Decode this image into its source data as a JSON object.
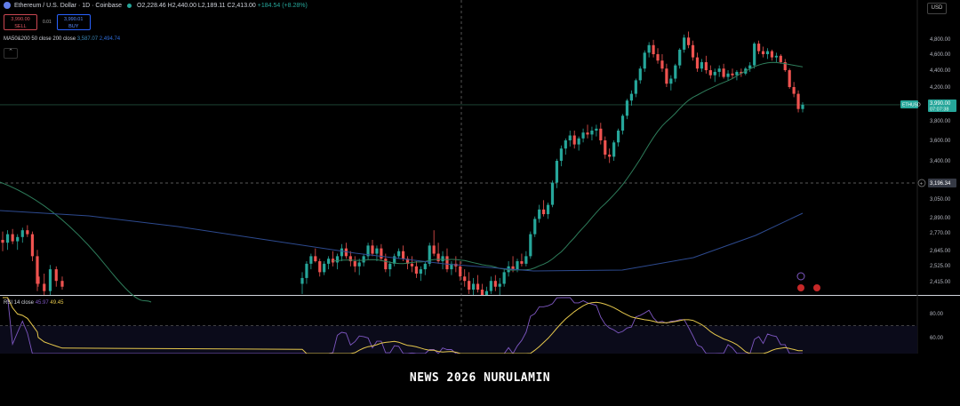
{
  "header": {
    "title": "Ethereum / U.S. Dollar · 1D · Coinbase",
    "ohlc": [
      {
        "k": "O",
        "v": "2,228.46"
      },
      {
        "k": "H",
        "v": "2,440.00"
      },
      {
        "k": "L",
        "v": "2,189.11"
      },
      {
        "k": "C",
        "v": "2,413.00"
      }
    ],
    "change": "+184.54 (+8.28%)"
  },
  "trade": {
    "sell_price": "3,990.00",
    "sell_label": "SELL",
    "spread": "0.01",
    "buy_price": "3,990.01",
    "buy_label": "BUY"
  },
  "indicators": {
    "ma_label": "MA50&200 50 close 200 close",
    "ma50_value": "3,587.07",
    "ma200_value": "2,494.74",
    "rsi_label": "RSI 14 close",
    "rsi_value": "45.97",
    "rsi_ma_value": "49.45"
  },
  "currency": "USD",
  "footer_text": "NEWS 2026 NURULAMIN",
  "colors": {
    "up": "#26a69a",
    "down": "#ef5350",
    "ma50": "#2e7d5b",
    "ma200": "#2d4a8f",
    "rsi": "#7e57c2",
    "rsi_ma": "#e6c84c",
    "price_label": "#26a69a"
  },
  "icons": [
    "ethereum-logo-icon",
    "market-open-dot-icon",
    "collapse-arrow-icon",
    "crosshair-plus-icon",
    "event-flag-icon"
  ],
  "chart_data": {
    "type": "candlestick",
    "symbol": "ETHUSD",
    "price_axis_ticks": [
      "4,800.00",
      "4,600.00",
      "4,400.00",
      "4,200.00",
      "3,800.00",
      "3,600.00",
      "3,400.00",
      "3,050.00",
      "2,890.00",
      "2,770.00",
      "2,645.00",
      "2,525.00",
      "2,415.00"
    ],
    "current_price": {
      "symbol": "ETHUSD",
      "price": "3,990.00",
      "countdown": "07:07:38"
    },
    "crosshair_price": "3,196.34",
    "rsi_axis_ticks": [
      "80.00",
      "60.00"
    ],
    "rsi_level_line": 70,
    "candles": [
      [
        2720,
        2780,
        2640,
        2700
      ],
      [
        2700,
        2790,
        2650,
        2760
      ],
      [
        2760,
        2800,
        2690,
        2710
      ],
      [
        2710,
        2760,
        2650,
        2740
      ],
      [
        2740,
        2810,
        2700,
        2790
      ],
      [
        2790,
        2830,
        2740,
        2760
      ],
      [
        2760,
        2780,
        2560,
        2600
      ],
      [
        2600,
        2650,
        2350,
        2400
      ],
      [
        2450,
        2480,
        2380,
        2400
      ],
      [
        2400,
        2470,
        2300,
        2350
      ],
      [
        2350,
        2530,
        2320,
        2500
      ],
      [
        2500,
        2520,
        2380,
        2420
      ],
      [
        2420,
        2450,
        2360,
        2380
      ],
      [
        2400,
        2480,
        2330,
        2440
      ],
      [
        2440,
        2560,
        2400,
        2540
      ],
      [
        2540,
        2620,
        2500,
        2600
      ],
      [
        2600,
        2660,
        2550,
        2560
      ],
      [
        2560,
        2580,
        2450,
        2480
      ],
      [
        2480,
        2560,
        2460,
        2540
      ],
      [
        2540,
        2600,
        2500,
        2580
      ],
      [
        2580,
        2640,
        2520,
        2550
      ],
      [
        2550,
        2620,
        2500,
        2600
      ],
      [
        2600,
        2690,
        2560,
        2660
      ],
      [
        2660,
        2700,
        2580,
        2600
      ],
      [
        2600,
        2640,
        2520,
        2560
      ],
      [
        2560,
        2600,
        2480,
        2520
      ],
      [
        2520,
        2580,
        2460,
        2550
      ],
      [
        2550,
        2620,
        2520,
        2600
      ],
      [
        2600,
        2700,
        2570,
        2680
      ],
      [
        2680,
        2720,
        2600,
        2620
      ],
      [
        2620,
        2680,
        2560,
        2660
      ],
      [
        2660,
        2690,
        2560,
        2580
      ],
      [
        2580,
        2620,
        2480,
        2500
      ],
      [
        2500,
        2560,
        2450,
        2540
      ],
      [
        2540,
        2620,
        2520,
        2600
      ],
      [
        2600,
        2660,
        2580,
        2640
      ],
      [
        2640,
        2680,
        2560,
        2580
      ],
      [
        2580,
        2600,
        2500,
        2540
      ],
      [
        2540,
        2600,
        2480,
        2520
      ],
      [
        2520,
        2560,
        2440,
        2470
      ],
      [
        2470,
        2520,
        2420,
        2500
      ],
      [
        2500,
        2560,
        2460,
        2540
      ],
      [
        2540,
        2700,
        2520,
        2680
      ],
      [
        2680,
        2790,
        2600,
        2620
      ],
      [
        2620,
        2700,
        2540,
        2560
      ],
      [
        2560,
        2640,
        2500,
        2600
      ],
      [
        2600,
        2660,
        2480,
        2500
      ],
      [
        2500,
        2560,
        2460,
        2540
      ],
      [
        2540,
        2600,
        2480,
        2520
      ],
      [
        2520,
        2560,
        2420,
        2450
      ],
      [
        2450,
        2500,
        2380,
        2420
      ],
      [
        2420,
        2480,
        2330,
        2360
      ],
      [
        2360,
        2440,
        2310,
        2400
      ],
      [
        2400,
        2460,
        2340,
        2360
      ],
      [
        2360,
        2400,
        2280,
        2320
      ],
      [
        2320,
        2380,
        2260,
        2350
      ],
      [
        2350,
        2450,
        2330,
        2420
      ],
      [
        2420,
        2460,
        2350,
        2380
      ],
      [
        2380,
        2440,
        2320,
        2400
      ],
      [
        2400,
        2500,
        2380,
        2480
      ],
      [
        2480,
        2560,
        2450,
        2520
      ],
      [
        2520,
        2600,
        2480,
        2500
      ],
      [
        2500,
        2580,
        2480,
        2560
      ],
      [
        2560,
        2620,
        2520,
        2540
      ],
      [
        2540,
        2640,
        2520,
        2600
      ],
      [
        2600,
        2780,
        2580,
        2760
      ],
      [
        2760,
        2900,
        2740,
        2880
      ],
      [
        2880,
        3000,
        2850,
        2960
      ],
      [
        2960,
        3040,
        2900,
        2920
      ],
      [
        2920,
        3020,
        2880,
        3000
      ],
      [
        3000,
        3220,
        2980,
        3200
      ],
      [
        3200,
        3420,
        3150,
        3400
      ],
      [
        3400,
        3550,
        3350,
        3520
      ],
      [
        3520,
        3620,
        3460,
        3600
      ],
      [
        3600,
        3700,
        3540,
        3650
      ],
      [
        3650,
        3700,
        3520,
        3560
      ],
      [
        3560,
        3640,
        3500,
        3620
      ],
      [
        3620,
        3720,
        3580,
        3680
      ],
      [
        3680,
        3760,
        3620,
        3660
      ],
      [
        3660,
        3740,
        3600,
        3700
      ],
      [
        3700,
        3760,
        3640,
        3720
      ],
      [
        3720,
        3780,
        3560,
        3600
      ],
      [
        3600,
        3640,
        3420,
        3460
      ],
      [
        3460,
        3520,
        3380,
        3440
      ],
      [
        3440,
        3600,
        3400,
        3580
      ],
      [
        3580,
        3720,
        3540,
        3700
      ],
      [
        3700,
        3880,
        3660,
        3860
      ],
      [
        3860,
        4060,
        3820,
        4040
      ],
      [
        4040,
        4160,
        3980,
        4120
      ],
      [
        4120,
        4300,
        4080,
        4280
      ],
      [
        4280,
        4450,
        4240,
        4420
      ],
      [
        4420,
        4650,
        4380,
        4620
      ],
      [
        4620,
        4760,
        4560,
        4720
      ],
      [
        4720,
        4790,
        4560,
        4600
      ],
      [
        4600,
        4680,
        4480,
        4520
      ],
      [
        4520,
        4600,
        4380,
        4420
      ],
      [
        4420,
        4480,
        4200,
        4240
      ],
      [
        4240,
        4340,
        4160,
        4300
      ],
      [
        4300,
        4480,
        4260,
        4460
      ],
      [
        4460,
        4680,
        4420,
        4660
      ],
      [
        4660,
        4860,
        4620,
        4820
      ],
      [
        4820,
        4900,
        4680,
        4720
      ],
      [
        4720,
        4780,
        4520,
        4560
      ],
      [
        4560,
        4620,
        4380,
        4420
      ],
      [
        4420,
        4540,
        4380,
        4500
      ],
      [
        4500,
        4580,
        4360,
        4400
      ],
      [
        4400,
        4460,
        4300,
        4340
      ],
      [
        4340,
        4420,
        4260,
        4380
      ],
      [
        4380,
        4460,
        4320,
        4420
      ],
      [
        4420,
        4480,
        4300,
        4320
      ],
      [
        4320,
        4400,
        4280,
        4360
      ],
      [
        4360,
        4420,
        4300,
        4340
      ],
      [
        4340,
        4400,
        4280,
        4380
      ],
      [
        4380,
        4420,
        4320,
        4360
      ],
      [
        4360,
        4440,
        4340,
        4420
      ],
      [
        4420,
        4500,
        4380,
        4460
      ],
      [
        4460,
        4760,
        4420,
        4740
      ],
      [
        4740,
        4780,
        4600,
        4640
      ],
      [
        4640,
        4700,
        4560,
        4600
      ],
      [
        4600,
        4680,
        4540,
        4640
      ],
      [
        4640,
        4660,
        4520,
        4560
      ],
      [
        4560,
        4620,
        4500,
        4580
      ],
      [
        4580,
        4600,
        4480,
        4500
      ],
      [
        4500,
        4540,
        4380,
        4400
      ],
      [
        4400,
        4420,
        4180,
        4200
      ],
      [
        4200,
        4260,
        4080,
        4120
      ],
      [
        4120,
        4160,
        3900,
        3940
      ],
      [
        3940,
        4020,
        3900,
        3990
      ]
    ]
  }
}
